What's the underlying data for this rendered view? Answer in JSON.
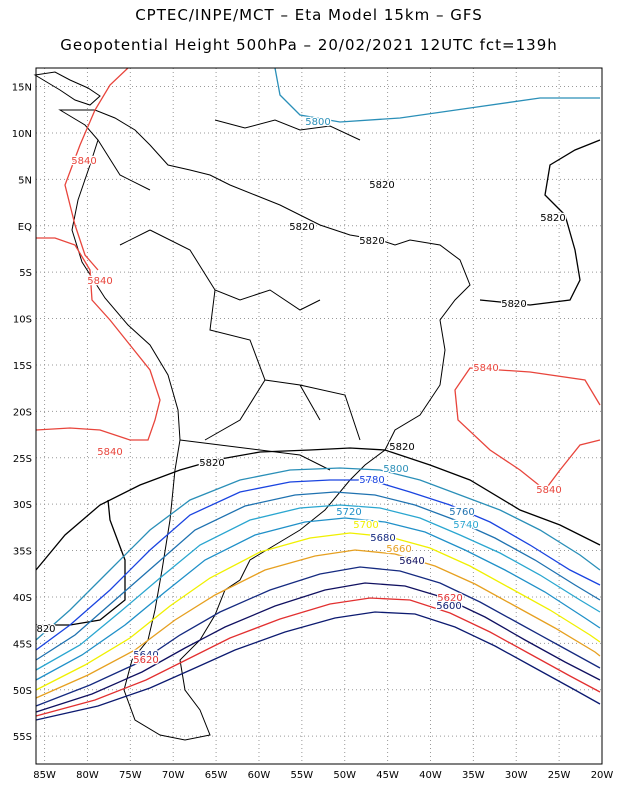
{
  "header": {
    "line1": "CPTEC/INPE/MCT –  Eta Model 15km – GFS",
    "line2": "Geopotential Height 500hPa – 20/02/2021 12UTC fct=139h"
  },
  "axes": {
    "lat_labels": [
      "15N",
      "10N",
      "5N",
      "EQ",
      "5S",
      "10S",
      "15S",
      "20S",
      "25S",
      "30S",
      "35S",
      "40S",
      "45S",
      "50S",
      "55S"
    ],
    "lon_labels": [
      "85W",
      "80W",
      "75W",
      "70W",
      "65W",
      "60W",
      "55W",
      "50W",
      "45W",
      "40W",
      "35W",
      "30W",
      "25W",
      "20W"
    ]
  },
  "colors": {
    "c5840": "#e8453c",
    "c5820": "#000000",
    "c5800": "#2a8fb8",
    "c5780": "#1a44e0",
    "c5760": "#1f72b0",
    "c5740": "#2aa6d0",
    "c5720": "#2090c8",
    "c5700": "#f0f000",
    "c5680": "#e6a020",
    "c5660": "#152a80",
    "c5640": "#101060",
    "c5620": "#e23030",
    "c5600": "#0c1a70",
    "coast": "#000000"
  },
  "contour_labels": [
    {
      "id": "5800_top",
      "text": "5800",
      "color": "#2a8fb8"
    },
    {
      "id": "5840_nw",
      "text": "5840",
      "color": "#e8453c"
    },
    {
      "id": "5820_ven",
      "text": "5820",
      "color": "#000000"
    },
    {
      "id": "5820_eq",
      "text": "5820",
      "color": "#000000"
    },
    {
      "id": "5820_guy",
      "text": "5820",
      "color": "#000000"
    },
    {
      "id": "5820_atl",
      "text": "5820",
      "color": "#000000"
    },
    {
      "id": "5840_peru",
      "text": "5840",
      "color": "#e8453c"
    },
    {
      "id": "5820_br",
      "text": "5820",
      "color": "#000000"
    },
    {
      "id": "5840_atl",
      "text": "5840",
      "color": "#e8453c"
    },
    {
      "id": "5840_pac",
      "text": "5840",
      "color": "#e8453c"
    },
    {
      "id": "5820_rs",
      "text": "5820",
      "color": "#000000"
    },
    {
      "id": "5820_arg",
      "text": "5820",
      "color": "#000000"
    },
    {
      "id": "5800_s",
      "text": "5800",
      "color": "#2a8fb8"
    },
    {
      "id": "5840_se",
      "text": "5840",
      "color": "#e8453c"
    },
    {
      "id": "5780",
      "text": "5780",
      "color": "#1a44e0"
    },
    {
      "id": "5760",
      "text": "5760",
      "color": "#1f72b0"
    },
    {
      "id": "5720",
      "text": "5720",
      "color": "#2090c8"
    },
    {
      "id": "5740",
      "text": "5740",
      "color": "#2aa6d0"
    },
    {
      "id": "5700",
      "text": "5700",
      "color": "#f0f000"
    },
    {
      "id": "5680",
      "text": "5680",
      "color": "#152a80"
    },
    {
      "id": "5660",
      "text": "5660",
      "color": "#e6a020"
    },
    {
      "id": "5640",
      "text": "5640",
      "color": "#101060"
    },
    {
      "id": "5620",
      "text": "5620",
      "color": "#e23030"
    },
    {
      "id": "5600",
      "text": "5600",
      "color": "#0c1a70"
    },
    {
      "id": "820_w",
      "text": "820",
      "color": "#000000"
    },
    {
      "id": "5640_pat",
      "text": "5640",
      "color": "#152a80"
    },
    {
      "id": "5620_pat",
      "text": "5620",
      "color": "#e23030"
    }
  ]
}
